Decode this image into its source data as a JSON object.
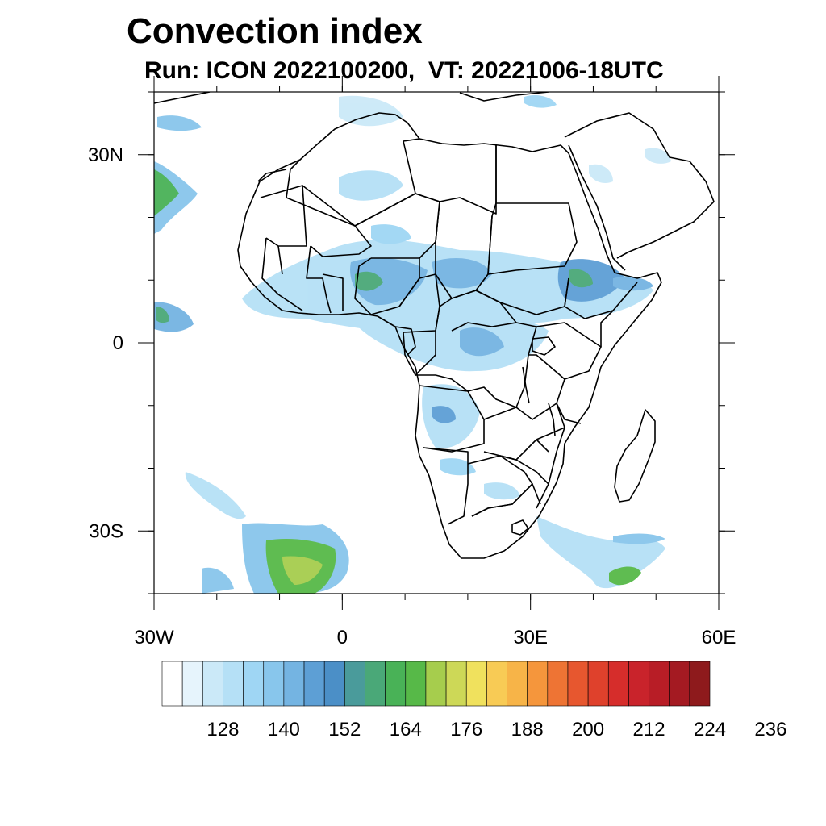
{
  "title": "Convection index",
  "subtitle": "Run: ICON 2022100200,  VT: 20221006-18UTC",
  "map": {
    "region": "Africa",
    "lon_range": [
      -30,
      60
    ],
    "lat_range": [
      -40,
      40
    ],
    "lat_ticks": [
      {
        "value": 30,
        "label": "30N"
      },
      {
        "value": 0,
        "label": "0"
      },
      {
        "value": -30,
        "label": "30S"
      }
    ],
    "lon_ticks": [
      {
        "value": -30,
        "label": "30W"
      },
      {
        "value": 0,
        "label": "0"
      },
      {
        "value": 30,
        "label": "30E"
      },
      {
        "value": 60,
        "label": "60E"
      }
    ]
  },
  "colorbar": {
    "labels": [
      "128",
      "140",
      "152",
      "164",
      "176",
      "188",
      "200",
      "212",
      "224",
      "236"
    ],
    "colors": [
      "#ffffff",
      "#e6f4fc",
      "#cbe9f8",
      "#b5e0f6",
      "#9fd6f4",
      "#88c6ec",
      "#74b4e2",
      "#5d9fd5",
      "#4b8fc7",
      "#4a9b9b",
      "#4aa878",
      "#49b257",
      "#57b948",
      "#a6cd4d",
      "#cdd857",
      "#f0e15d",
      "#f8cb55",
      "#f7b448",
      "#f5963c",
      "#ee7434",
      "#e7572f",
      "#df412c",
      "#d62d2b",
      "#c9232b",
      "#b81d26",
      "#a41a22",
      "#8e1a1c"
    ]
  }
}
